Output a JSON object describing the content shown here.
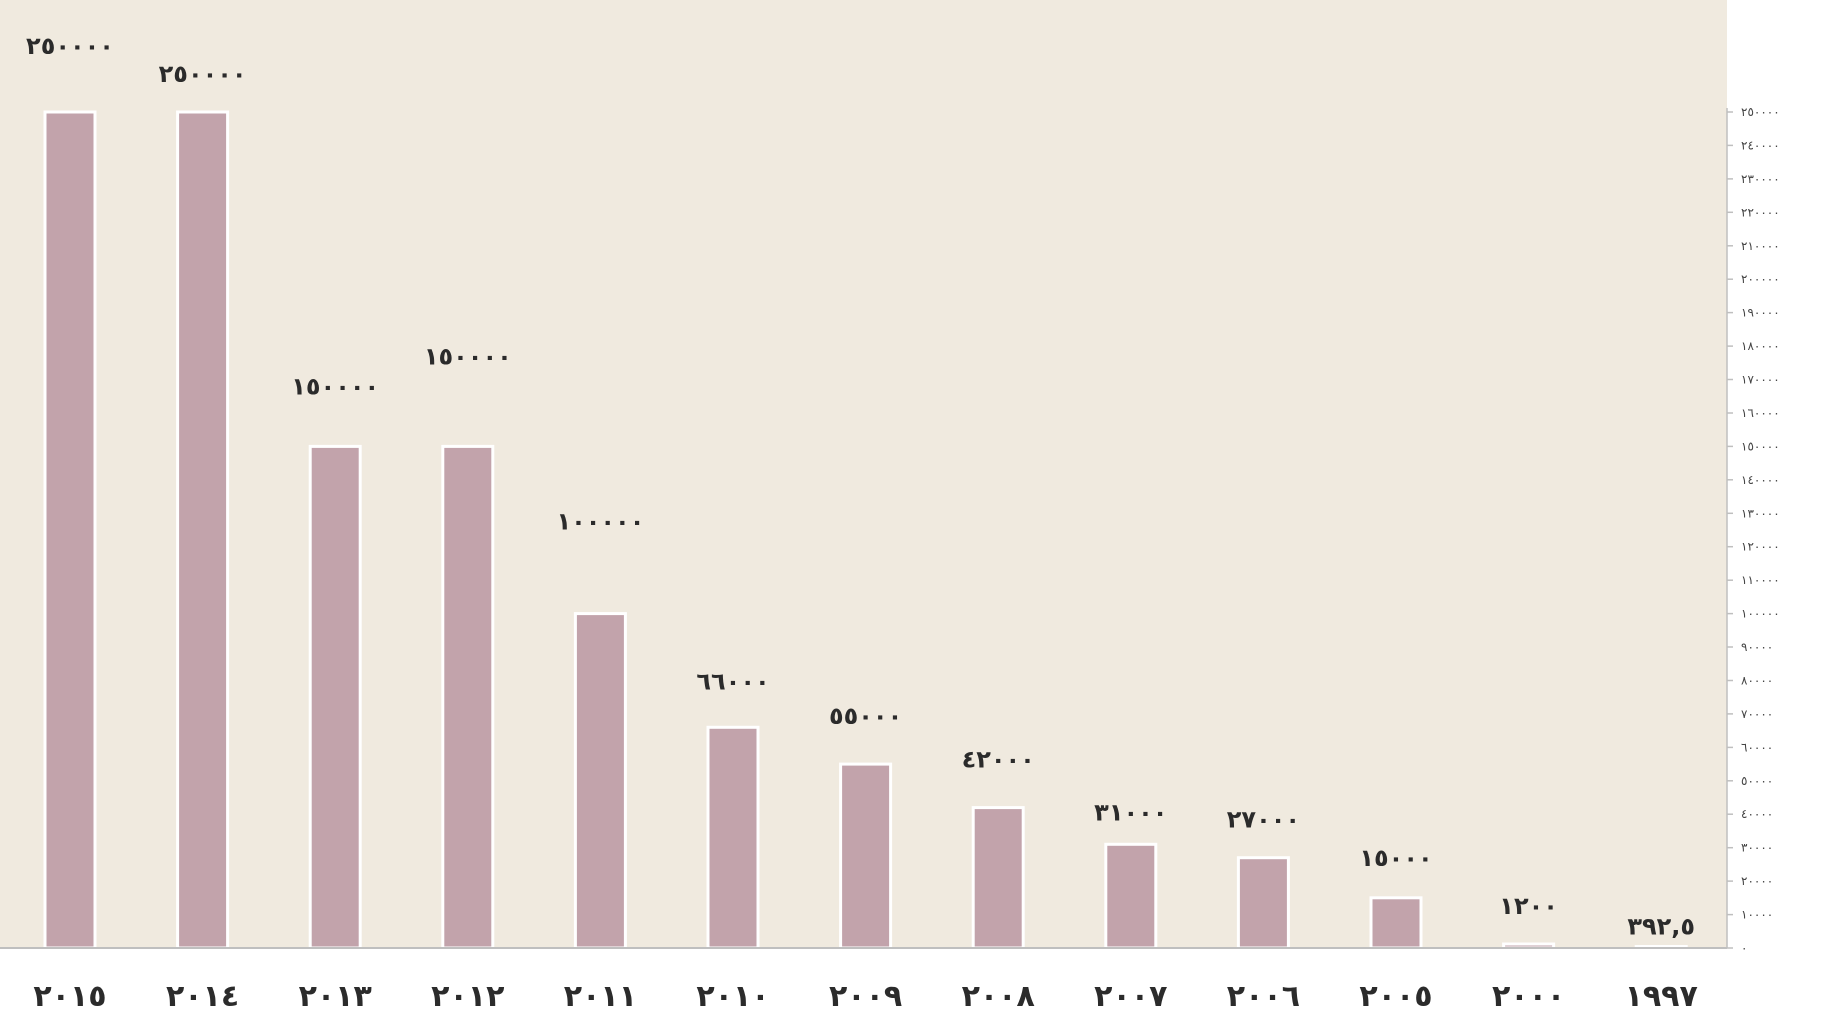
{
  "chart_data": {
    "type": "bar",
    "title": "",
    "xlabel": "",
    "ylabel": "",
    "categories": [
      "٢٠١٥",
      "٢٠١٤",
      "٢٠١٣",
      "٢٠١٢",
      "٢٠١١",
      "٢٠١٠",
      "٢٠٠٩",
      "٢٠٠٨",
      "٢٠٠٧",
      "٢٠٠٦",
      "٢٠٠٥",
      "٢٠٠٠",
      "١٩٩٧"
    ],
    "values": [
      250000,
      250000,
      150000,
      150000,
      100000,
      66000,
      55000,
      42000,
      31000,
      27000,
      15000,
      1200,
      392.5
    ],
    "value_labels": [
      "٢٥٠٠٠٠",
      "٢٥٠٠٠٠",
      "١٥٠٠٠٠",
      "١٥٠٠٠٠",
      "١٠٠٠٠٠",
      "٦٦٠٠٠",
      "٥٥٠٠٠",
      "٤٢٠٠٠",
      "٣١٠٠٠",
      "٢٧٠٠٠",
      "١٥٠٠٠",
      "١٢٠٠",
      "٣٩٢,٥"
    ],
    "ylim": [
      0,
      250000
    ],
    "y_ticks": [
      0,
      10000,
      20000,
      30000,
      40000,
      50000,
      60000,
      70000,
      80000,
      90000,
      100000,
      110000,
      120000,
      130000,
      140000,
      150000,
      160000,
      170000,
      180000,
      190000,
      200000,
      210000,
      220000,
      230000,
      240000,
      250000
    ],
    "y_tick_labels": [
      "٠",
      "١٠٠٠٠",
      "٢٠٠٠٠",
      "٣٠٠٠٠",
      "٤٠٠٠٠",
      "٥٠٠٠٠",
      "٦٠٠٠٠",
      "٧٠٠٠٠",
      "٨٠٠٠٠",
      "٩٠٠٠٠",
      "١٠٠٠٠٠",
      "١١٠٠٠٠",
      "١٢٠٠٠٠",
      "١٣٠٠٠٠",
      "١٤٠٠٠٠",
      "١٥٠٠٠٠",
      "١٦٠٠٠٠",
      "١٧٠٠٠٠",
      "١٨٠٠٠٠",
      "١٩٠٠٠٠",
      "٢٠٠٠٠٠",
      "٢١٠٠٠٠",
      "٢٢٠٠٠٠",
      "٢٣٠٠٠٠",
      "٢٤٠٠٠٠",
      "٢٥٠٠٠٠"
    ],
    "y_axis_side": "right",
    "grid": false,
    "legend": "none",
    "colors": {
      "plot_background": "#f0eadf",
      "bar_fill": "#c2a3ab",
      "bar_stroke": "#ffffff",
      "axis": "#bfbfbf",
      "text": "#2b2b2b"
    }
  }
}
